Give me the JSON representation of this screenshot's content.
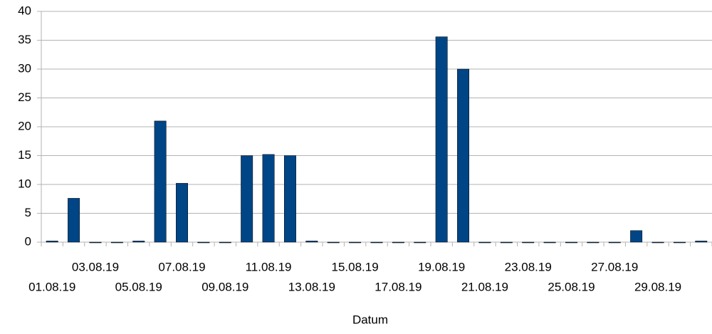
{
  "chart_data": {
    "type": "bar",
    "x_label": "Datum",
    "categories": [
      "01.08.19",
      null,
      "03.08.19",
      null,
      "05.08.19",
      null,
      "07.08.19",
      null,
      "09.08.19",
      null,
      "11.08.19",
      null,
      "13.08.19",
      null,
      "15.08.19",
      null,
      "17.08.19",
      null,
      "19.08.19",
      null,
      "21.08.19",
      null,
      "23.08.19",
      null,
      "25.08.19",
      null,
      "27.08.19",
      null,
      "29.08.19",
      null,
      null
    ],
    "values": [
      0.2,
      7.6,
      0,
      0,
      0.2,
      21,
      10.2,
      0,
      0,
      15,
      15.2,
      15,
      0.2,
      0,
      0,
      0,
      0,
      0,
      35.6,
      30,
      0,
      0,
      0,
      0,
      0,
      0,
      0,
      2,
      0,
      0,
      0.2
    ],
    "color": "#004586",
    "ylim": [
      0,
      40
    ],
    "yticks": [
      0,
      5,
      10,
      15,
      20,
      25,
      30,
      35,
      40
    ],
    "grid": true
  }
}
